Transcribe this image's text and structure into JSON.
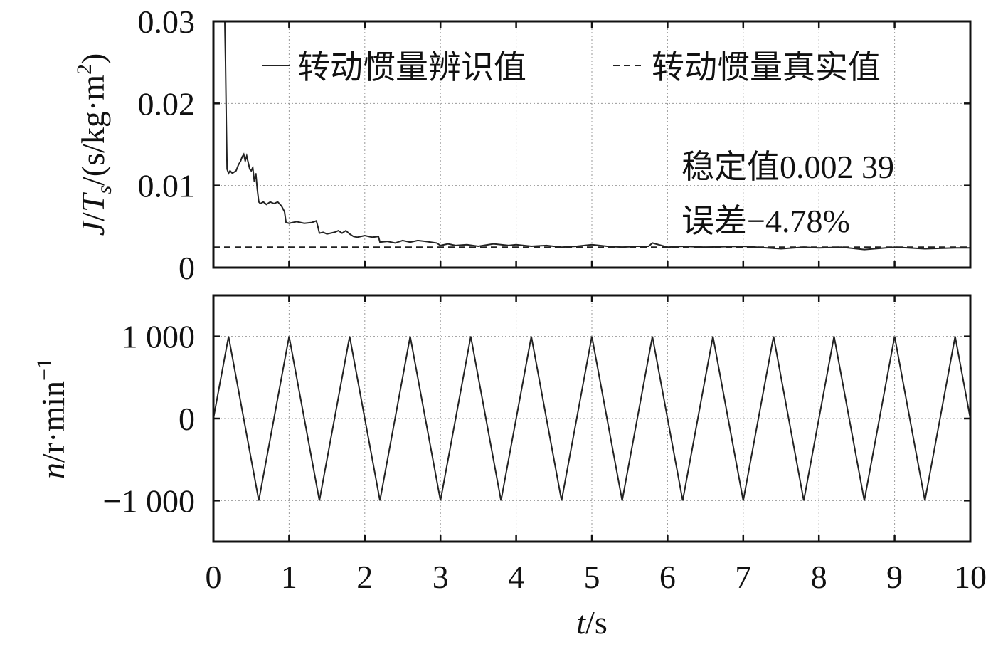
{
  "chart_data": [
    {
      "type": "line",
      "xlim": [
        0,
        10
      ],
      "ylim": [
        0,
        0.03
      ],
      "xticks": [
        "0",
        "1",
        "2",
        "3",
        "4",
        "5",
        "6",
        "7",
        "8",
        "9",
        "10"
      ],
      "yticks": [
        {
          "value": 0,
          "label": "0"
        },
        {
          "value": 0.01,
          "label": "0.01"
        },
        {
          "value": 0.02,
          "label": "0.02"
        },
        {
          "value": 0.03,
          "label": "0.03"
        }
      ],
      "ylabel": {
        "j": "J",
        "slash1": "/",
        "t": "T",
        "sub": "s",
        "rest": "/(s/kg·m",
        "sup": "2",
        "close": ")"
      },
      "grid": true,
      "legend_position": "top",
      "series": [
        {
          "name": "转动惯量辨识值",
          "style": "solid",
          "x": [
            0.15,
            0.16,
            0.17,
            0.18,
            0.2,
            0.22,
            0.25,
            0.3,
            0.33,
            0.36,
            0.38,
            0.4,
            0.42,
            0.44,
            0.46,
            0.48,
            0.5,
            0.52,
            0.54,
            0.56,
            0.58,
            0.6,
            0.62,
            0.66,
            0.7,
            0.75,
            0.8,
            0.85,
            0.9,
            0.94,
            0.96,
            1.0,
            1.1,
            1.2,
            1.3,
            1.36,
            1.38,
            1.4,
            1.45,
            1.5,
            1.6,
            1.65,
            1.7,
            1.75,
            1.8,
            1.85,
            1.9,
            2.0,
            2.1,
            2.18,
            2.2,
            2.3,
            2.4,
            2.5,
            2.6,
            2.7,
            2.8,
            2.95,
            3.0,
            3.1,
            3.2,
            3.35,
            3.5,
            3.7,
            3.9,
            4.0,
            4.2,
            4.4,
            4.6,
            4.8,
            5.0,
            5.2,
            5.4,
            5.6,
            5.75,
            5.8,
            6.0,
            6.2,
            6.5,
            7.0,
            7.5,
            7.8,
            8.0,
            8.3,
            8.6,
            9.0,
            9.4,
            9.8,
            10.0
          ],
          "y": [
            0.03,
            0.025,
            0.018,
            0.012,
            0.0115,
            0.0118,
            0.0115,
            0.0118,
            0.0125,
            0.013,
            0.0135,
            0.0138,
            0.013,
            0.0136,
            0.0128,
            0.012,
            0.0118,
            0.0122,
            0.0105,
            0.0115,
            0.0095,
            0.008,
            0.0078,
            0.008,
            0.0077,
            0.008,
            0.0078,
            0.008,
            0.0075,
            0.0068,
            0.0055,
            0.0054,
            0.0056,
            0.0054,
            0.0055,
            0.0057,
            0.005,
            0.0042,
            0.0043,
            0.0041,
            0.0043,
            0.0045,
            0.0042,
            0.0045,
            0.0041,
            0.0038,
            0.0037,
            0.0039,
            0.0037,
            0.0038,
            0.0031,
            0.0032,
            0.003,
            0.0033,
            0.0031,
            0.0033,
            0.0032,
            0.003,
            0.0027,
            0.0029,
            0.0027,
            0.0028,
            0.0026,
            0.0029,
            0.0027,
            0.0028,
            0.0026,
            0.0027,
            0.0025,
            0.0026,
            0.0028,
            0.0026,
            0.0025,
            0.0026,
            0.0026,
            0.003,
            0.0025,
            0.0026,
            0.0025,
            0.0026,
            0.0023,
            0.0025,
            0.0024,
            0.0025,
            0.0022,
            0.0025,
            0.0023,
            0.0024,
            0.0024
          ]
        },
        {
          "name": "转动惯量真实值",
          "style": "dashed",
          "x": [
            0,
            10
          ],
          "y": [
            0.0025,
            0.0025
          ]
        }
      ],
      "annotations": [
        "稳定值0.002 39",
        "误差−4.78%"
      ]
    },
    {
      "type": "line",
      "xlim": [
        0,
        10
      ],
      "ylim": [
        -1500,
        1500
      ],
      "xticks": [
        "0",
        "1",
        "2",
        "3",
        "4",
        "5",
        "6",
        "7",
        "8",
        "9",
        "10"
      ],
      "yticks": [
        {
          "value": 1000,
          "label": "1 000"
        },
        {
          "value": 0,
          "label": "0"
        },
        {
          "value": -1000,
          "label": "−1 000"
        }
      ],
      "xlabel": {
        "t": "t",
        "rest": "/s"
      },
      "ylabel": {
        "n": "n",
        "rest": "/r·min",
        "sup": "−1"
      },
      "grid": true,
      "series": [
        {
          "style": "solid",
          "x": [
            0,
            0.2,
            0.6,
            1.0,
            1.4,
            1.8,
            2.2,
            2.6,
            3.0,
            3.4,
            3.8,
            4.2,
            4.6,
            5.0,
            5.4,
            5.8,
            6.2,
            6.6,
            7.0,
            7.4,
            7.8,
            8.2,
            8.6,
            9.0,
            9.4,
            9.8,
            10.0
          ],
          "y": [
            0,
            1000,
            -1000,
            1000,
            -1000,
            1000,
            -1000,
            1000,
            -1000,
            1000,
            -1000,
            1000,
            -1000,
            1000,
            -1000,
            1000,
            -1000,
            1000,
            -1000,
            1000,
            -1000,
            1000,
            -1000,
            1000,
            -1000,
            1000,
            0
          ]
        }
      ]
    }
  ]
}
